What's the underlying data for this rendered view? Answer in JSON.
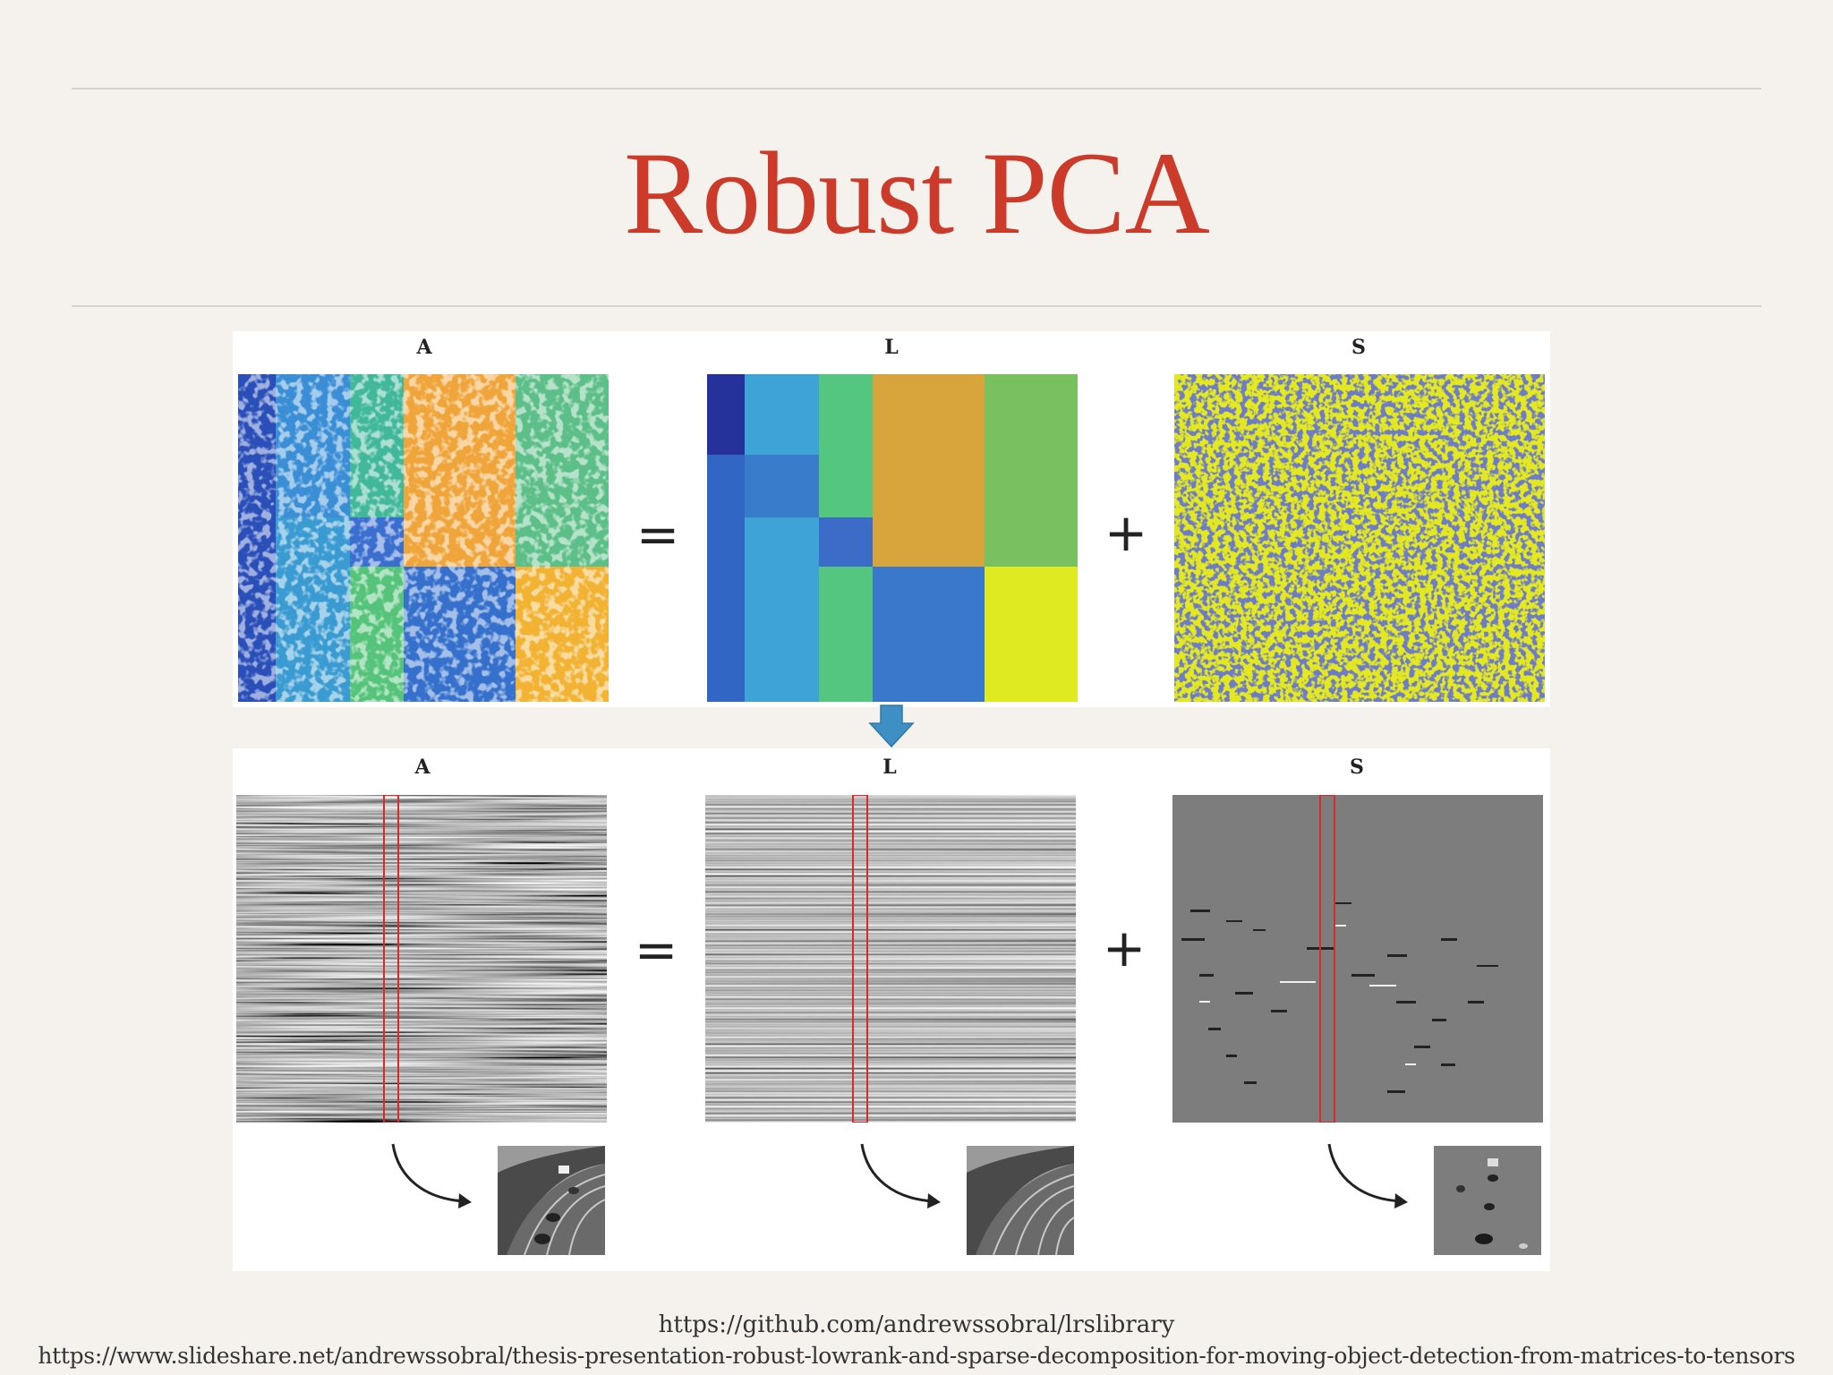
{
  "slide": {
    "title": "Robust PCA",
    "top_row": {
      "labels": [
        "A",
        "L",
        "S"
      ],
      "equals": "=",
      "plus": "+"
    },
    "bottom_row": {
      "labels": [
        "A",
        "L",
        "S"
      ],
      "equals": "=",
      "plus": "+"
    },
    "links": [
      "https://github.com/andrewssobral/lrslibrary",
      "https://www.slideshare.net/andrewssobral/thesis-presentation-robust-lowrank-and-sparse-decomposition-for-moving-object-detection-from-matrices-to-tensors"
    ],
    "colors": {
      "title": "#cc3b2a",
      "highlight_box": "#d62b2b",
      "arrow": "#3d8fc4",
      "navy": "#27339a",
      "yellow": "#e3e81f"
    }
  }
}
